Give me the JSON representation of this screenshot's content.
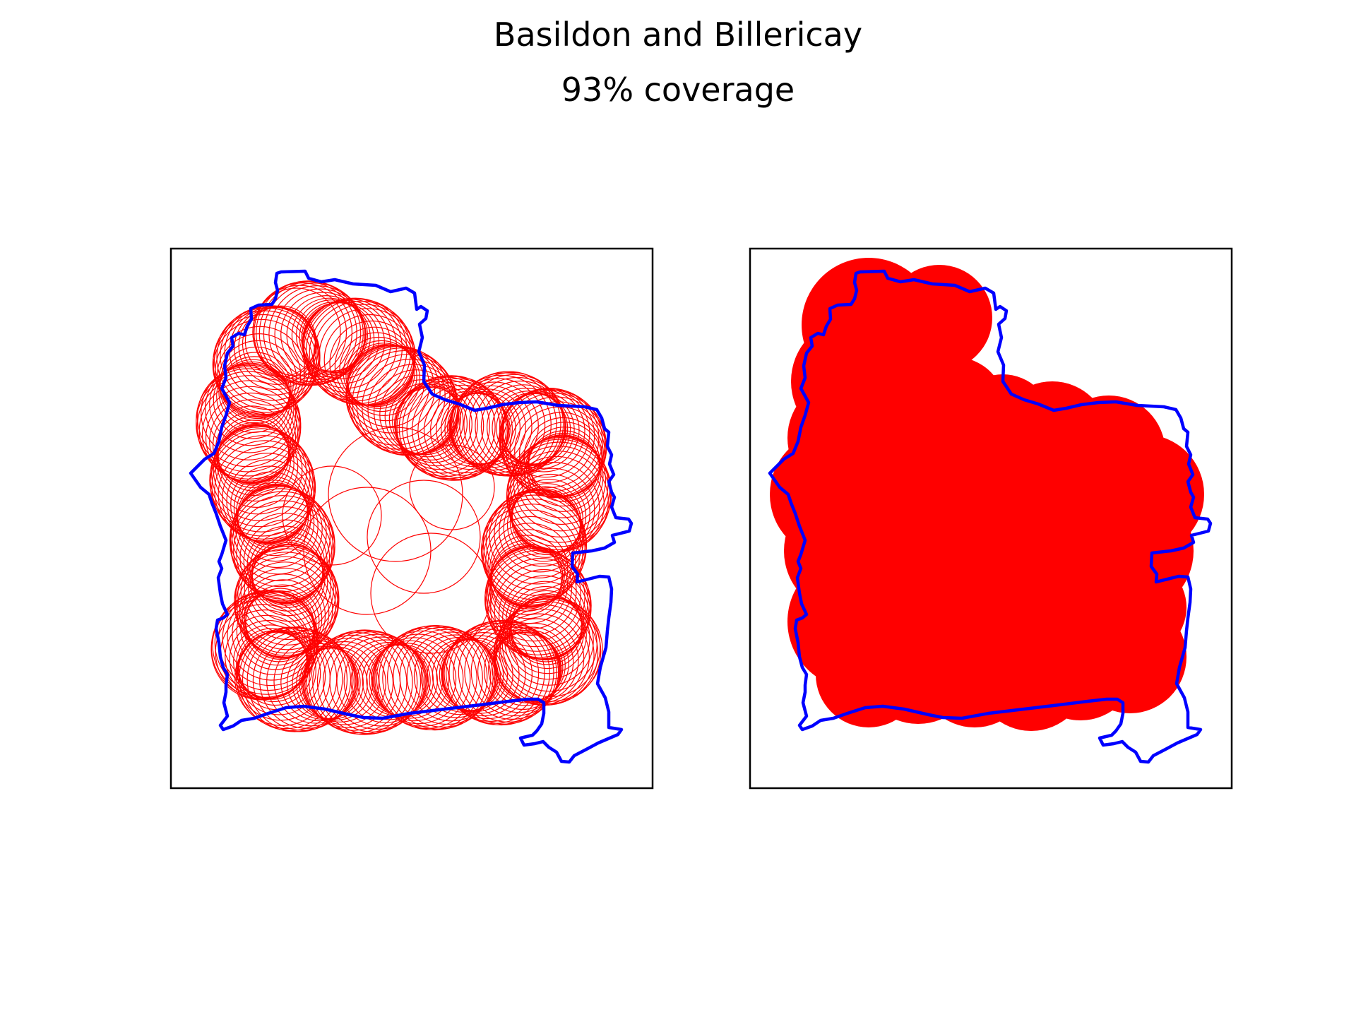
{
  "figure": {
    "title": "Basildon and Billericay",
    "subtitle": "93% coverage"
  },
  "panels": [
    {
      "name": "circles-outline-panel",
      "style": "outline"
    },
    {
      "name": "circles-filled-panel",
      "style": "filled"
    }
  ],
  "colors": {
    "boundary": "#0000ff",
    "coverage": "#ff0000",
    "frame": "#000000",
    "background": "#ffffff"
  }
}
